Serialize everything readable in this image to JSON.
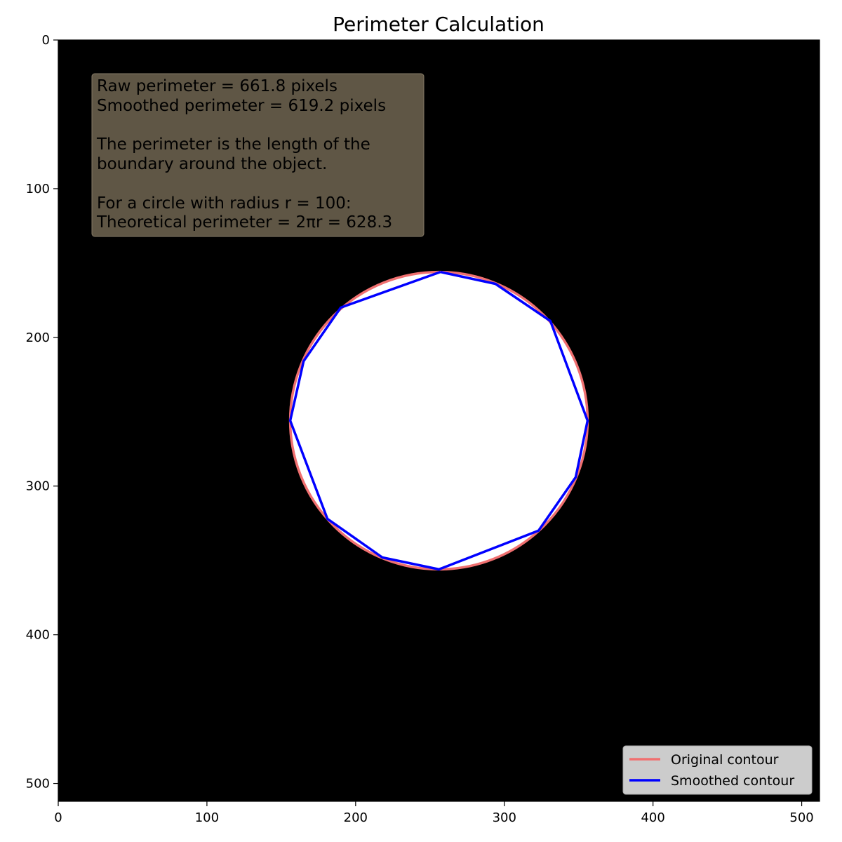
{
  "chart_data": {
    "type": "image-contour",
    "title": "Perimeter Calculation",
    "image_size": [
      512,
      512
    ],
    "xlim": [
      0,
      512
    ],
    "ylim": [
      512,
      0
    ],
    "x_ticks": [
      0,
      100,
      200,
      300,
      400,
      500
    ],
    "y_ticks": [
      0,
      100,
      200,
      300,
      400,
      500
    ],
    "object": {
      "shape": "circle",
      "center": [
        256,
        256
      ],
      "radius": 100,
      "fill": "#ffffff"
    },
    "background": "#000000",
    "series": [
      {
        "name": "Original contour",
        "color": "#f07070",
        "kind": "pixel-boundary",
        "center": [
          256,
          256
        ],
        "radius": 100
      },
      {
        "name": "Smoothed contour",
        "color": "#0000ff",
        "kind": "polygon",
        "points": [
          [
            257,
            156
          ],
          [
            294,
            164
          ],
          [
            331,
            189
          ],
          [
            356,
            256
          ],
          [
            348,
            294
          ],
          [
            323,
            330
          ],
          [
            256,
            356
          ],
          [
            218,
            348
          ],
          [
            181,
            322
          ],
          [
            156,
            256
          ],
          [
            165,
            216
          ],
          [
            190,
            180
          ],
          [
            257,
            156
          ]
        ]
      }
    ],
    "legend": {
      "position": "bottom-right",
      "items": [
        {
          "label": "Original contour",
          "color": "#f07070"
        },
        {
          "label": "Smoothed contour",
          "color": "#0000ff"
        }
      ]
    },
    "annotation": {
      "lines": [
        "Raw perimeter = 661.8 pixels",
        "Smoothed perimeter = 619.2 pixels",
        "",
        "The perimeter is the length of the",
        "boundary around the object.",
        "",
        "For a circle with radius r = 100:",
        "Theoretical perimeter = 2πr = 628.3"
      ],
      "box_color": "#5f5645"
    }
  }
}
